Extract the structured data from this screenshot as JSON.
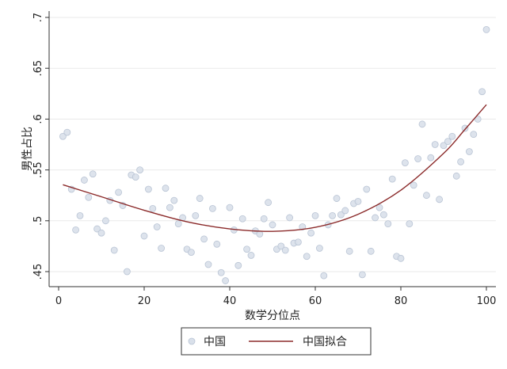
{
  "chart_data": {
    "type": "scatter",
    "xlabel": "数学分位点",
    "ylabel": "男性占比",
    "xlim": [
      0,
      100
    ],
    "ylim": [
      0.44,
      0.705
    ],
    "x_ticks": [
      {
        "value": 0,
        "label": "0"
      },
      {
        "value": 20,
        "label": "20"
      },
      {
        "value": 40,
        "label": "40"
      },
      {
        "value": 60,
        "label": "60"
      },
      {
        "value": 80,
        "label": "80"
      },
      {
        "value": 100,
        "label": "100"
      }
    ],
    "y_ticks": [
      {
        "value": 0.45,
        "label": ".45"
      },
      {
        "value": 0.5,
        "label": ".5"
      },
      {
        "value": 0.55,
        "label": ".55"
      },
      {
        "value": 0.6,
        "label": ".6"
      },
      {
        "value": 0.65,
        "label": ".65"
      },
      {
        "value": 0.7,
        "label": ".7"
      }
    ],
    "grid": "horizontal",
    "legend_position": "bottom",
    "colors": {
      "scatter": "#c9d3e2",
      "fit": "#8b2a2a",
      "grid": "#eaeaea"
    },
    "series": [
      {
        "name": "中国",
        "type": "scatter",
        "points": [
          [
            1,
            0.583
          ],
          [
            2,
            0.587
          ],
          [
            3,
            0.531
          ],
          [
            4,
            0.491
          ],
          [
            5,
            0.505
          ],
          [
            6,
            0.54
          ],
          [
            7,
            0.523
          ],
          [
            8,
            0.546
          ],
          [
            9,
            0.492
          ],
          [
            10,
            0.488
          ],
          [
            11,
            0.5
          ],
          [
            12,
            0.52
          ],
          [
            13,
            0.471
          ],
          [
            14,
            0.528
          ],
          [
            15,
            0.515
          ],
          [
            16,
            0.45
          ],
          [
            17,
            0.545
          ],
          [
            18,
            0.543
          ],
          [
            19,
            0.55
          ],
          [
            20,
            0.485
          ],
          [
            21,
            0.531
          ],
          [
            22,
            0.512
          ],
          [
            23,
            0.494
          ],
          [
            24,
            0.473
          ],
          [
            25,
            0.532
          ],
          [
            26,
            0.513
          ],
          [
            27,
            0.52
          ],
          [
            28,
            0.497
          ],
          [
            29,
            0.503
          ],
          [
            30,
            0.472
          ],
          [
            31,
            0.469
          ],
          [
            32,
            0.505
          ],
          [
            33,
            0.522
          ],
          [
            34,
            0.482
          ],
          [
            35,
            0.457
          ],
          [
            36,
            0.512
          ],
          [
            37,
            0.477
          ],
          [
            38,
            0.449
          ],
          [
            39,
            0.441
          ],
          [
            40,
            0.513
          ],
          [
            41,
            0.491
          ],
          [
            42,
            0.456
          ],
          [
            43,
            0.502
          ],
          [
            44,
            0.472
          ],
          [
            45,
            0.466
          ],
          [
            46,
            0.49
          ],
          [
            47,
            0.487
          ],
          [
            48,
            0.502
          ],
          [
            49,
            0.518
          ],
          [
            50,
            0.496
          ],
          [
            51,
            0.472
          ],
          [
            52,
            0.475
          ],
          [
            53,
            0.471
          ],
          [
            54,
            0.503
          ],
          [
            55,
            0.478
          ],
          [
            56,
            0.479
          ],
          [
            57,
            0.494
          ],
          [
            58,
            0.465
          ],
          [
            59,
            0.488
          ],
          [
            60,
            0.505
          ],
          [
            61,
            0.473
          ],
          [
            62,
            0.446
          ],
          [
            63,
            0.496
          ],
          [
            64,
            0.505
          ],
          [
            65,
            0.522
          ],
          [
            66,
            0.506
          ],
          [
            67,
            0.51
          ],
          [
            68,
            0.47
          ],
          [
            69,
            0.517
          ],
          [
            70,
            0.519
          ],
          [
            71,
            0.447
          ],
          [
            72,
            0.531
          ],
          [
            73,
            0.47
          ],
          [
            74,
            0.503
          ],
          [
            75,
            0.513
          ],
          [
            76,
            0.506
          ],
          [
            77,
            0.497
          ],
          [
            78,
            0.541
          ],
          [
            79,
            0.465
          ],
          [
            80,
            0.463
          ],
          [
            81,
            0.557
          ],
          [
            82,
            0.497
          ],
          [
            83,
            0.535
          ],
          [
            84,
            0.561
          ],
          [
            85,
            0.595
          ],
          [
            86,
            0.525
          ],
          [
            87,
            0.562
          ],
          [
            88,
            0.575
          ],
          [
            89,
            0.521
          ],
          [
            90,
            0.574
          ],
          [
            91,
            0.578
          ],
          [
            92,
            0.583
          ],
          [
            93,
            0.544
          ],
          [
            94,
            0.558
          ],
          [
            95,
            0.591
          ],
          [
            96,
            0.568
          ],
          [
            97,
            0.585
          ],
          [
            98,
            0.6
          ],
          [
            99,
            0.627
          ],
          [
            100,
            0.688
          ]
        ]
      },
      {
        "name": "中国拟合",
        "type": "line",
        "points": [
          [
            1,
            0.5354
          ],
          [
            10,
            0.5236
          ],
          [
            20,
            0.5103
          ],
          [
            30,
            0.499
          ],
          [
            40,
            0.492
          ],
          [
            50,
            0.4896
          ],
          [
            60,
            0.4936
          ],
          [
            70,
            0.5064
          ],
          [
            80,
            0.5301
          ],
          [
            90,
            0.5663
          ],
          [
            95,
            0.5899
          ],
          [
            100,
            0.6142
          ]
        ]
      }
    ]
  }
}
